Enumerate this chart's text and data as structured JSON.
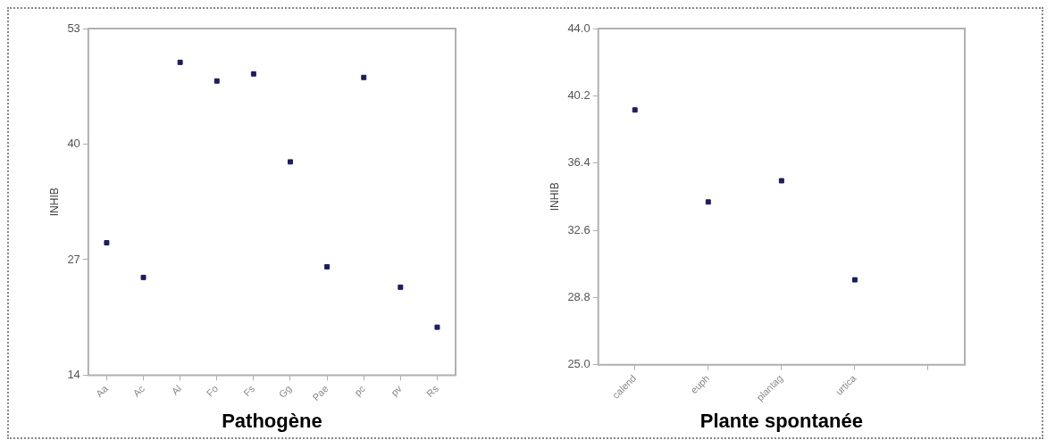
{
  "chart_data": [
    {
      "type": "scatter",
      "xlabel": "Pathogène",
      "ylabel": "INHIB",
      "categories": [
        "Aa",
        "Ac",
        "Al",
        "Fo",
        "Fs",
        "Gg",
        "Pae",
        "pc",
        "pv",
        "Rs"
      ],
      "series": [
        {
          "color": "#1c1c5e",
          "values": [
            28.9,
            25.0,
            49.2,
            47.1,
            47.9,
            38.0,
            26.2,
            47.5,
            23.9,
            19.4
          ]
        }
      ],
      "ylim": [
        14,
        53
      ],
      "yticks": [
        14,
        27,
        40,
        53
      ],
      "grid": false,
      "legend": false,
      "marker": "square"
    },
    {
      "type": "scatter",
      "xlabel": "Plante spontanée",
      "ylabel": "INHIB",
      "categories": [
        "calend",
        "euph",
        "plantag",
        "urtica",
        null
      ],
      "series": [
        {
          "color": "#1c1c5e",
          "values": [
            39.4,
            34.2,
            35.4,
            29.8,
            null
          ]
        }
      ],
      "ylim": [
        25,
        44
      ],
      "yticks": [
        {
          "value": 25,
          "label": "25.0"
        },
        {
          "value": 28.8,
          "label": "28.8"
        },
        {
          "value": 32.6,
          "label": "32.6"
        },
        {
          "value": 36.4,
          "label": "36.4"
        },
        {
          "value": 40.2,
          "label": "40.2"
        },
        {
          "value": 44,
          "label": "44.0"
        }
      ],
      "grid": false,
      "legend": false,
      "marker": "square"
    }
  ]
}
